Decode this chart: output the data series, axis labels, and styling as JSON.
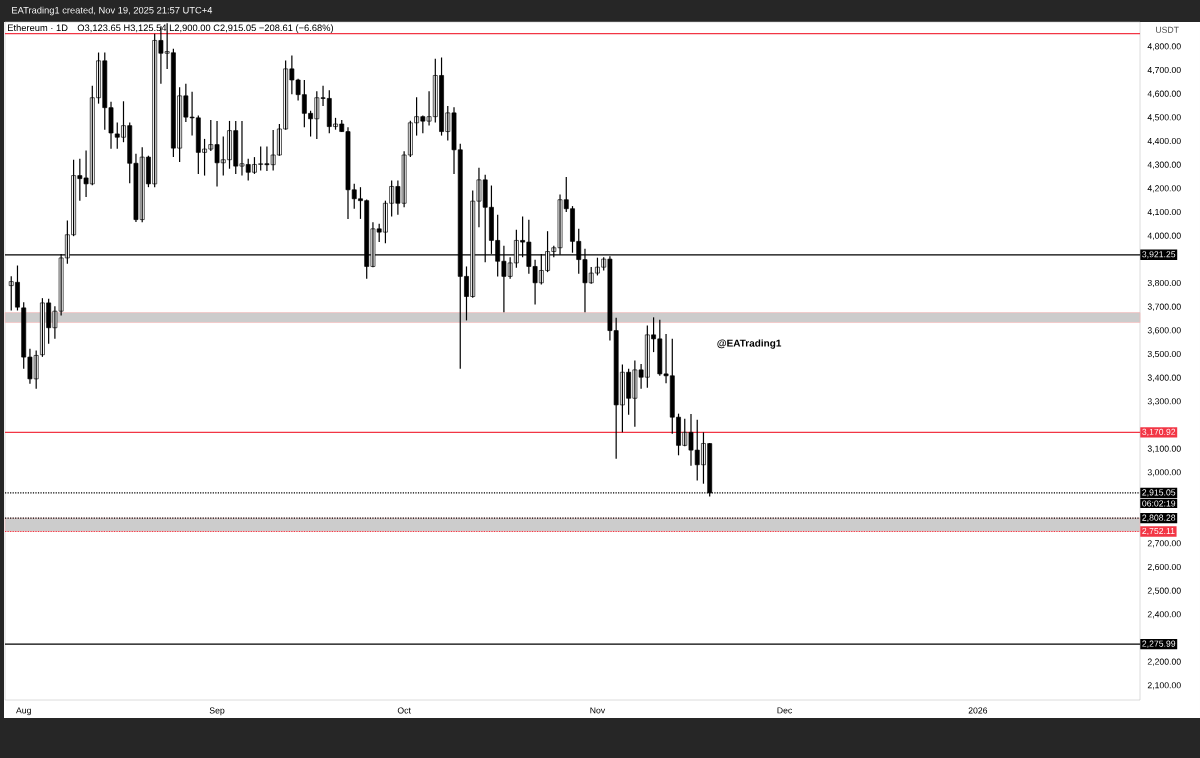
{
  "chart_data": {
    "type": "candlestick",
    "title": "Ethereum · 1D",
    "subtitle": "O3,123.65  H3,125.54  L2,900.00  C2,915.05  −208.61 (−6.68%)",
    "ylabel": "USDT",
    "color": "#000000",
    "annotations": [
      "EATrading1 created, Nov 19, 2025 21:57 UTC+4",
      "06:02:19",
      "@EATrading1"
    ],
    "xlim": [
      "2025-07-29",
      "2026-01-27"
    ],
    "ylim": [
      2040,
      4905
    ],
    "xticks": [
      {
        "value": "2025-08-01",
        "label": "Aug"
      },
      {
        "value": "2025-09-01",
        "label": "Sep"
      },
      {
        "value": "2025-10-01",
        "label": "Oct"
      },
      {
        "value": "2025-11-01",
        "label": "Nov"
      },
      {
        "value": "2025-12-01",
        "label": "Dec"
      },
      {
        "value": "2026-01-01",
        "label": "2026"
      }
    ],
    "yticks": [
      {
        "value": 2100,
        "label": "2,100.00"
      },
      {
        "value": 2200,
        "label": "2,200.00"
      },
      {
        "value": 2400,
        "label": "2,400.00"
      },
      {
        "value": 2500,
        "label": "2,500.00"
      },
      {
        "value": 2600,
        "label": "2,600.00"
      },
      {
        "value": 2700,
        "label": "2,700.00"
      },
      {
        "value": 3000,
        "label": "3,000.00"
      },
      {
        "value": 3100,
        "label": "3,100.00"
      },
      {
        "value": 3300,
        "label": "3,300.00"
      },
      {
        "value": 3400,
        "label": "3,400.00"
      },
      {
        "value": 3500,
        "label": "3,500.00"
      },
      {
        "value": 3600,
        "label": "3,600.00"
      },
      {
        "value": 3700,
        "label": "3,700.00"
      },
      {
        "value": 3800,
        "label": "3,800.00"
      },
      {
        "value": 4000,
        "label": "4,000.00"
      },
      {
        "value": 4100,
        "label": "4,100.00"
      },
      {
        "value": 4200,
        "label": "4,200.00"
      },
      {
        "value": 4300,
        "label": "4,300.00"
      },
      {
        "value": 4400,
        "label": "4,400.00"
      },
      {
        "value": 4500,
        "label": "4,500.00"
      },
      {
        "value": 4600,
        "label": "4,600.00"
      },
      {
        "value": 4700,
        "label": "4,700.00"
      },
      {
        "value": 4800,
        "label": "4,800.00"
      }
    ],
    "ref_lines": [
      {
        "axis": "y",
        "value": 4856,
        "label": null,
        "color": "#f23645",
        "line_style": "solid"
      },
      {
        "axis": "y",
        "value": 3921.25,
        "label": "3,921.25",
        "color": "#000000",
        "line_style": "solid"
      },
      {
        "axis": "y",
        "value": 3170.92,
        "label": "3,170.92",
        "color": "#f23645",
        "line_style": "solid"
      },
      {
        "axis": "y",
        "value": 2915.05,
        "label": "2,915.05",
        "color": "#000000",
        "line_style": "dotted"
      },
      {
        "axis": "y",
        "value": 2808.28,
        "label": "2,808.28",
        "color": "#000000",
        "line_style": "dotted"
      },
      {
        "axis": "y",
        "value": 2752.11,
        "label": "2,752.11",
        "color": "#f23645",
        "line_style": "dotted"
      },
      {
        "axis": "y",
        "value": 2275.99,
        "label": "2,275.99",
        "color": "#000000",
        "line_style": "solid"
      }
    ],
    "bands": [
      {
        "axis": "y",
        "from": 3635,
        "to": 3677,
        "label": null,
        "color": "#cccccc"
      },
      {
        "axis": "y",
        "from": 2752.11,
        "to": 2808.28,
        "label": null,
        "color": "#cccccc"
      }
    ],
    "x": [
      "2025-07-30",
      "2025-07-31",
      "2025-08-01",
      "2025-08-02",
      "2025-08-03",
      "2025-08-04",
      "2025-08-05",
      "2025-08-06",
      "2025-08-07",
      "2025-08-08",
      "2025-08-09",
      "2025-08-10",
      "2025-08-11",
      "2025-08-12",
      "2025-08-13",
      "2025-08-14",
      "2025-08-15",
      "2025-08-16",
      "2025-08-17",
      "2025-08-18",
      "2025-08-19",
      "2025-08-20",
      "2025-08-21",
      "2025-08-22",
      "2025-08-23",
      "2025-08-24",
      "2025-08-25",
      "2025-08-26",
      "2025-08-27",
      "2025-08-28",
      "2025-08-29",
      "2025-08-30",
      "2025-08-31",
      "2025-09-01",
      "2025-09-02",
      "2025-09-03",
      "2025-09-04",
      "2025-09-05",
      "2025-09-06",
      "2025-09-07",
      "2025-09-08",
      "2025-09-09",
      "2025-09-10",
      "2025-09-11",
      "2025-09-12",
      "2025-09-13",
      "2025-09-14",
      "2025-09-15",
      "2025-09-16",
      "2025-09-17",
      "2025-09-18",
      "2025-09-19",
      "2025-09-20",
      "2025-09-21",
      "2025-09-22",
      "2025-09-23",
      "2025-09-24",
      "2025-09-25",
      "2025-09-26",
      "2025-09-27",
      "2025-09-28",
      "2025-09-29",
      "2025-09-30",
      "2025-10-01",
      "2025-10-02",
      "2025-10-03",
      "2025-10-04",
      "2025-10-05",
      "2025-10-06",
      "2025-10-07",
      "2025-10-08",
      "2025-10-09",
      "2025-10-10",
      "2025-10-11",
      "2025-10-12",
      "2025-10-13",
      "2025-10-14",
      "2025-10-15",
      "2025-10-16",
      "2025-10-17",
      "2025-10-18",
      "2025-10-19",
      "2025-10-20",
      "2025-10-21",
      "2025-10-22",
      "2025-10-23",
      "2025-10-24",
      "2025-10-25",
      "2025-10-26",
      "2025-10-27",
      "2025-10-28",
      "2025-10-29",
      "2025-10-30",
      "2025-10-31",
      "2025-11-01",
      "2025-11-02",
      "2025-11-03",
      "2025-11-04",
      "2025-11-05",
      "2025-11-06",
      "2025-11-07",
      "2025-11-08",
      "2025-11-09",
      "2025-11-10",
      "2025-11-11",
      "2025-11-12",
      "2025-11-13",
      "2025-11-14",
      "2025-11-15",
      "2025-11-16",
      "2025-11-17",
      "2025-11-18",
      "2025-11-19"
    ],
    "ohlc": [
      [
        3791,
        3831,
        3686,
        3808
      ],
      [
        3805,
        3876,
        3686,
        3700
      ],
      [
        3697,
        3721,
        3440,
        3489
      ],
      [
        3489,
        3524,
        3376,
        3397
      ],
      [
        3397,
        3517,
        3355,
        3496
      ],
      [
        3499,
        3738,
        3490,
        3718
      ],
      [
        3718,
        3735,
        3545,
        3613
      ],
      [
        3613,
        3704,
        3566,
        3683
      ],
      [
        3683,
        3925,
        3665,
        3908
      ],
      [
        3908,
        4066,
        3883,
        4006
      ],
      [
        4006,
        4323,
        4000,
        4256
      ],
      [
        4256,
        4327,
        4150,
        4243
      ],
      [
        4246,
        4362,
        4165,
        4221
      ],
      [
        4221,
        4636,
        4215,
        4585
      ],
      [
        4585,
        4776,
        4560,
        4741
      ],
      [
        4741,
        4776,
        4450,
        4543
      ],
      [
        4543,
        4568,
        4369,
        4436
      ],
      [
        4432,
        4480,
        4369,
        4418
      ],
      [
        4418,
        4570,
        4397,
        4467
      ],
      [
        4467,
        4480,
        4224,
        4308
      ],
      [
        4308,
        4348,
        4060,
        4070
      ],
      [
        4070,
        4376,
        4059,
        4334
      ],
      [
        4334,
        4340,
        4207,
        4221
      ],
      [
        4221,
        4855,
        4207,
        4827
      ],
      [
        4827,
        4887,
        4644,
        4773
      ],
      [
        4773,
        4900,
        4706,
        4780
      ],
      [
        4775,
        4792,
        4334,
        4372
      ],
      [
        4372,
        4629,
        4313,
        4593
      ],
      [
        4593,
        4644,
        4482,
        4503
      ],
      [
        4503,
        4610,
        4425,
        4500
      ],
      [
        4500,
        4510,
        4263,
        4354
      ],
      [
        4354,
        4411,
        4256,
        4368
      ],
      [
        4368,
        4491,
        4360,
        4387
      ],
      [
        4387,
        4487,
        4210,
        4310
      ],
      [
        4310,
        4421,
        4256,
        4323
      ],
      [
        4323,
        4487,
        4285,
        4446
      ],
      [
        4446,
        4487,
        4263,
        4296
      ],
      [
        4296,
        4487,
        4256,
        4306
      ],
      [
        4303,
        4327,
        4235,
        4270
      ],
      [
        4270,
        4334,
        4263,
        4303
      ],
      [
        4303,
        4379,
        4277,
        4306
      ],
      [
        4306,
        4379,
        4275,
        4302
      ],
      [
        4302,
        4449,
        4277,
        4343
      ],
      [
        4343,
        4474,
        4340,
        4453
      ],
      [
        4453,
        4742,
        4450,
        4707
      ],
      [
        4707,
        4763,
        4600,
        4660
      ],
      [
        4660,
        4665,
        4573,
        4598
      ],
      [
        4598,
        4660,
        4460,
        4519
      ],
      [
        4519,
        4530,
        4421,
        4496
      ],
      [
        4496,
        4612,
        4411,
        4585
      ],
      [
        4585,
        4636,
        4550,
        4582
      ],
      [
        4582,
        4617,
        4435,
        4463
      ],
      [
        4463,
        4500,
        4450,
        4474
      ],
      [
        4474,
        4491,
        4440,
        4442
      ],
      [
        4442,
        4460,
        4073,
        4196
      ],
      [
        4196,
        4221,
        4116,
        4158
      ],
      [
        4158,
        4207,
        4073,
        4150
      ],
      [
        4150,
        4155,
        3820,
        3872
      ],
      [
        3872,
        4059,
        3869,
        4031
      ],
      [
        4031,
        4052,
        3975,
        4017
      ],
      [
        4017,
        4150,
        3970,
        4139
      ],
      [
        4139,
        4235,
        4083,
        4210
      ],
      [
        4210,
        4235,
        4091,
        4139
      ],
      [
        4139,
        4359,
        4122,
        4343
      ],
      [
        4343,
        4488,
        4334,
        4479
      ],
      [
        4479,
        4587,
        4425,
        4505
      ],
      [
        4505,
        4510,
        4435,
        4486
      ],
      [
        4486,
        4612,
        4468,
        4505
      ],
      [
        4505,
        4750,
        4480,
        4679
      ],
      [
        4679,
        4755,
        4425,
        4442
      ],
      [
        4442,
        4550,
        4404,
        4521
      ],
      [
        4521,
        4545,
        4263,
        4365
      ],
      [
        4365,
        4390,
        3440,
        3830
      ],
      [
        3830,
        3872,
        3644,
        3745
      ],
      [
        3745,
        4193,
        3740,
        4148
      ],
      [
        4148,
        4289,
        4038,
        4238
      ],
      [
        4238,
        4259,
        3890,
        4122
      ],
      [
        4122,
        4214,
        3925,
        3982
      ],
      [
        3982,
        4090,
        3830,
        3894
      ],
      [
        3894,
        3960,
        3679,
        3830
      ],
      [
        3830,
        3911,
        3820,
        3887
      ],
      [
        3887,
        4027,
        3866,
        3982
      ],
      [
        3982,
        4083,
        3911,
        3975
      ],
      [
        3975,
        4069,
        3841,
        3872
      ],
      [
        3872,
        3900,
        3711,
        3803
      ],
      [
        3803,
        3925,
        3796,
        3855
      ],
      [
        3855,
        4021,
        3848,
        3935
      ],
      [
        3935,
        3960,
        3911,
        3951
      ],
      [
        3951,
        4176,
        3921,
        4154
      ],
      [
        4154,
        4250,
        4102,
        4116
      ],
      [
        4116,
        4127,
        3930,
        3978
      ],
      [
        3978,
        4031,
        3841,
        3901
      ],
      [
        3901,
        3947,
        3679,
        3803
      ],
      [
        3803,
        3870,
        3799,
        3844
      ],
      [
        3844,
        3909,
        3834,
        3869
      ],
      [
        3869,
        3911,
        3855,
        3903
      ],
      [
        3903,
        3915,
        3559,
        3601
      ],
      [
        3601,
        3655,
        3059,
        3287
      ],
      [
        3287,
        3458,
        3171,
        3425
      ],
      [
        3425,
        3440,
        3245,
        3315
      ],
      [
        3315,
        3475,
        3195,
        3435
      ],
      [
        3435,
        3460,
        3355,
        3404
      ],
      [
        3404,
        3622,
        3359,
        3583
      ],
      [
        3583,
        3657,
        3510,
        3566
      ],
      [
        3566,
        3647,
        3410,
        3418
      ],
      [
        3418,
        3587,
        3379,
        3410
      ],
      [
        3410,
        3566,
        3165,
        3235
      ],
      [
        3235,
        3250,
        3074,
        3116
      ],
      [
        3116,
        3228,
        3112,
        3171
      ],
      [
        3171,
        3249,
        3030,
        3096
      ],
      [
        3096,
        3224,
        2968,
        3034
      ],
      [
        3034,
        3171,
        2954,
        3124
      ],
      [
        3123.65,
        3125.54,
        2900.0,
        2915.05
      ]
    ]
  }
}
